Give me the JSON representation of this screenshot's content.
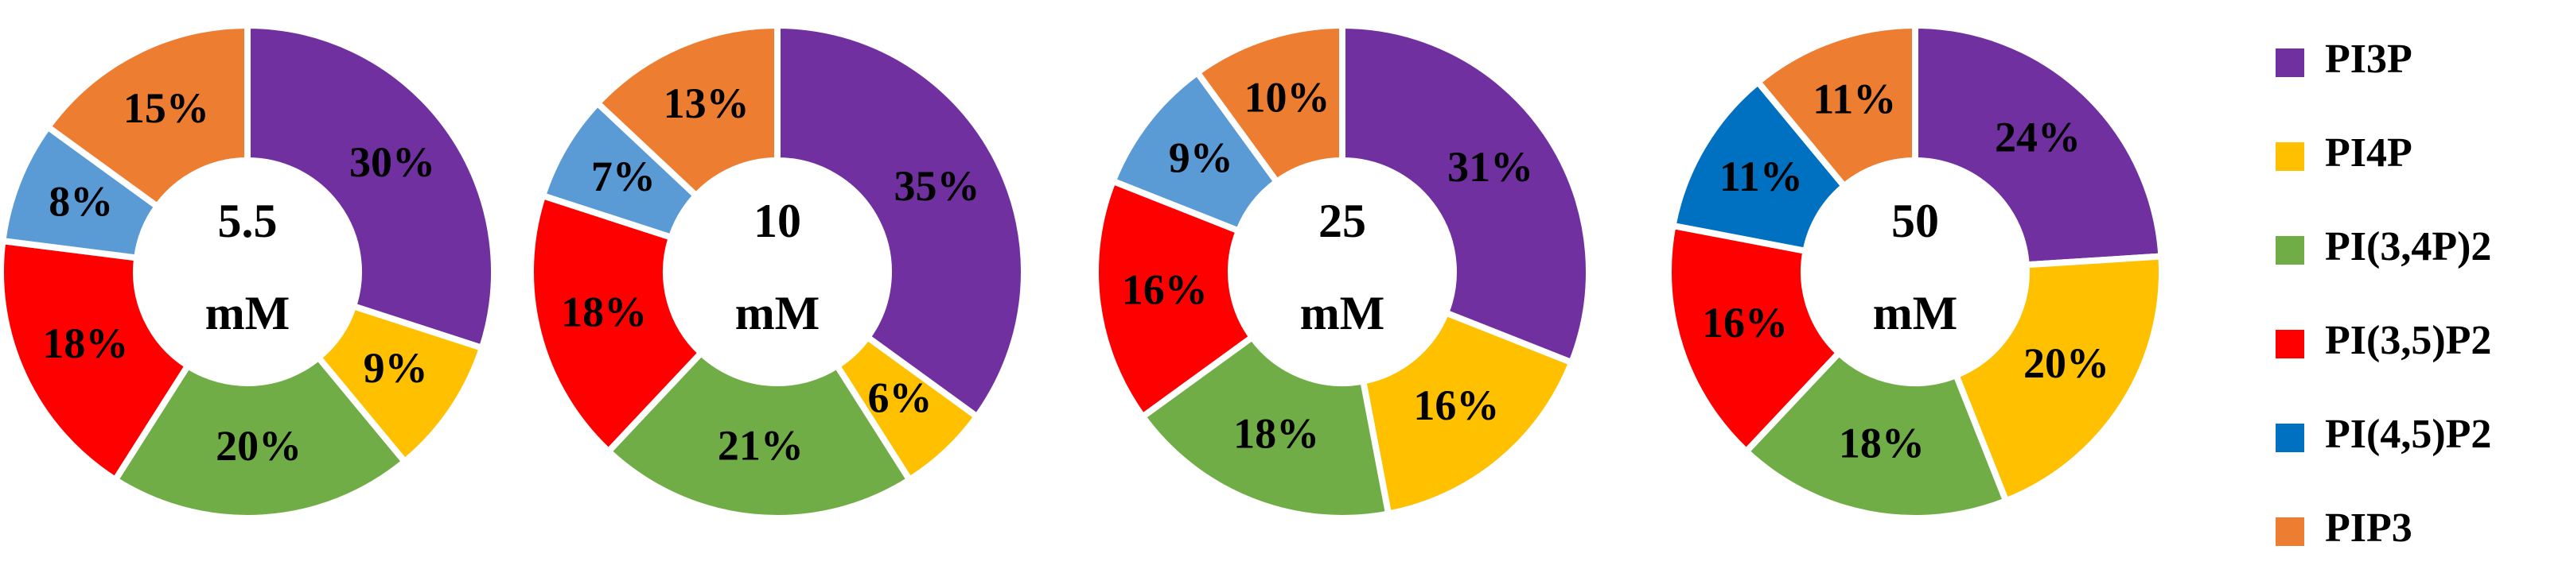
{
  "chart_data": [
    {
      "type": "pie",
      "center_value": "5.5",
      "center_unit": "mM",
      "categories": [
        "PI3P",
        "PI4P",
        "PI(3,4P)2",
        "PI(3,5)P2",
        "PI(4,5)P2",
        "PIP3"
      ],
      "values": [
        30,
        9,
        20,
        18,
        8,
        15
      ],
      "value_labels": [
        "30%",
        "9%",
        "20%",
        "18%",
        "8%",
        "15%"
      ],
      "colors": [
        "#7030a0",
        "#ffc000",
        "#70ad47",
        "#ff0000",
        "#5b9bd5",
        "#ed7d31"
      ]
    },
    {
      "type": "pie",
      "center_value": "10",
      "center_unit": "mM",
      "categories": [
        "PI3P",
        "PI4P",
        "PI(3,4P)2",
        "PI(3,5)P2",
        "PI(4,5)P2",
        "PIP3"
      ],
      "values": [
        35,
        6,
        21,
        18,
        7,
        13
      ],
      "value_labels": [
        "35%",
        "6%",
        "21%",
        "18%",
        "7%",
        "13%"
      ],
      "colors": [
        "#7030a0",
        "#ffc000",
        "#70ad47",
        "#ff0000",
        "#5b9bd5",
        "#ed7d31"
      ]
    },
    {
      "type": "pie",
      "center_value": "25",
      "center_unit": "mM",
      "categories": [
        "PI3P",
        "PI4P",
        "PI(3,4P)2",
        "PI(3,5)P2",
        "PI(4,5)P2",
        "PIP3"
      ],
      "values": [
        31,
        16,
        18,
        16,
        9,
        10
      ],
      "value_labels": [
        "31%",
        "16%",
        "18%",
        "16%",
        "9%",
        "10%"
      ],
      "colors": [
        "#7030a0",
        "#ffc000",
        "#70ad47",
        "#ff0000",
        "#5b9bd5",
        "#ed7d31"
      ]
    },
    {
      "type": "pie",
      "center_value": "50",
      "center_unit": "mM",
      "categories": [
        "PI3P",
        "PI4P",
        "PI(3,4P)2",
        "PI(3,5)P2",
        "PI(4,5)P2",
        "PIP3"
      ],
      "values": [
        24,
        20,
        18,
        16,
        11,
        11
      ],
      "value_labels": [
        "24%",
        "20%",
        "18%",
        "16%",
        "11%",
        "11%"
      ],
      "colors": [
        "#7030a0",
        "#ffc000",
        "#70ad47",
        "#ff0000",
        "#0070c0",
        "#ed7d31"
      ]
    }
  ]
}
